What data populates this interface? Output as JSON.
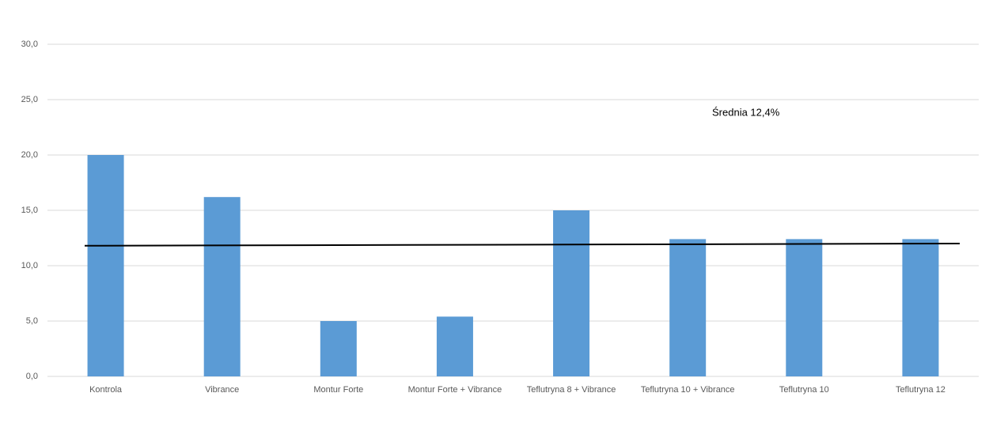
{
  "chart_data": {
    "type": "bar",
    "categories": [
      "Kontrola",
      "Vibrance",
      "Montur Forte",
      "Montur Forte + Vibrance",
      "Teflutryna 8 + Vibrance",
      "Teflutryna 10 + Vibrance",
      "Teflutryna 10",
      "Teflutryna 12"
    ],
    "values": [
      20.0,
      16.2,
      5.0,
      5.4,
      15.0,
      12.4,
      12.4,
      12.4
    ],
    "color": "#5b9bd5",
    "ylim": [
      0,
      30
    ],
    "yticks": [
      {
        "value": 0,
        "label": "0,0"
      },
      {
        "value": 5,
        "label": "5,0"
      },
      {
        "value": 10,
        "label": "10,0"
      },
      {
        "value": 15,
        "label": "15,0"
      },
      {
        "value": 20,
        "label": "20,0"
      },
      {
        "value": 25,
        "label": "25,0"
      },
      {
        "value": 30,
        "label": "30,0"
      }
    ],
    "grid": true,
    "mean_line": [
      11.8,
      12.0
    ],
    "annotation": "Średnia 12,4%"
  }
}
